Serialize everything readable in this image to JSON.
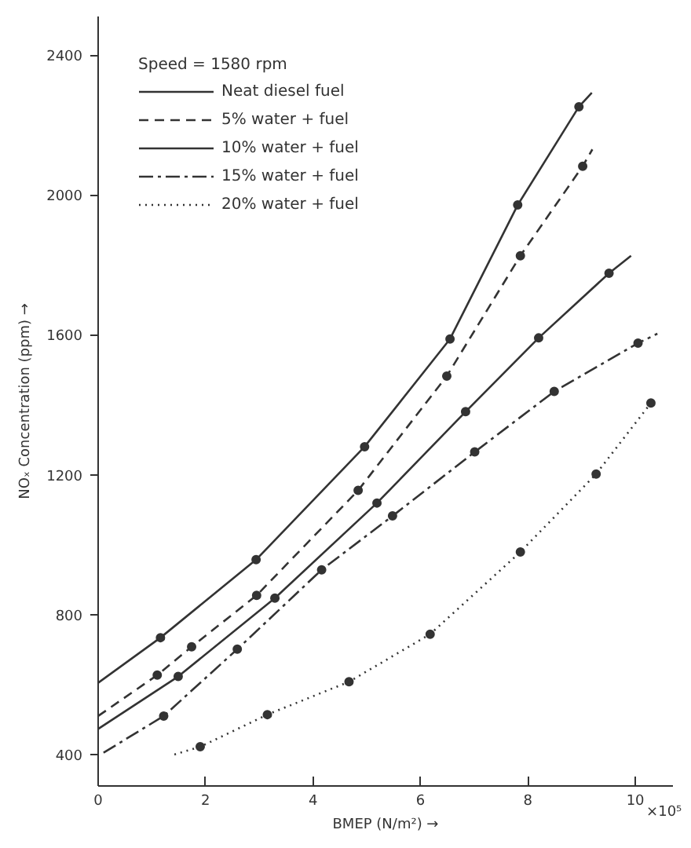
{
  "chart_data": {
    "type": "line",
    "xlabel": "BMEP (N/m²) →",
    "ylabel": "NOₓ Concentration (ppm) →",
    "legend_title": "Speed = 1580 rpm",
    "annotations": [
      "×10⁵"
    ],
    "xlim": [
      0,
      10.7
    ],
    "ylim": [
      310,
      2510
    ],
    "xticks": [
      0,
      2,
      4,
      6,
      8,
      10
    ],
    "yticks": [
      400,
      800,
      1200,
      1600,
      2000,
      2400
    ],
    "grid": false,
    "legend": "top left",
    "series": [
      {
        "name": "Neat diesel fuel",
        "color": "#333333",
        "line_style": "solid",
        "marker": "none",
        "x": [
          0,
          1.16,
          2.94,
          4.96,
          6.55,
          7.81,
          8.95,
          9.19
        ],
        "values": [
          605,
          734,
          957,
          1280,
          1588,
          1971,
          2252,
          2292
        ]
      },
      {
        "name": "5% water + fuel",
        "color": "#333333",
        "line_style": "dashed",
        "marker": "none",
        "x": [
          0,
          1.1,
          1.74,
          2.95,
          4.84,
          6.49,
          7.86,
          9.02,
          9.2
        ],
        "values": [
          510,
          627,
          708,
          855,
          1155,
          1482,
          1826,
          2082,
          2130
        ]
      },
      {
        "name": "10% water + fuel",
        "color": "#333333",
        "line_style": "solid",
        "marker": "none",
        "x": [
          0,
          1.49,
          3.29,
          5.19,
          6.84,
          8.2,
          9.51,
          9.92
        ],
        "values": [
          473,
          623,
          847,
          1119,
          1380,
          1591,
          1776,
          1826
        ]
      },
      {
        "name": "15% water + fuel",
        "color": "#333333",
        "line_style": "dashdot",
        "marker": "none",
        "x": [
          0.1,
          1.22,
          2.59,
          4.16,
          5.48,
          7.01,
          8.49,
          10.05,
          10.41
        ],
        "values": [
          405,
          510,
          701,
          928,
          1082,
          1265,
          1438,
          1576,
          1603
        ]
      },
      {
        "name": "20% water + fuel",
        "color": "#333333",
        "line_style": "dotted",
        "marker": "none",
        "x": [
          1.42,
          1.9,
          3.15,
          4.67,
          6.18,
          7.86,
          9.27,
          10.29
        ],
        "values": [
          400,
          422,
          514,
          608,
          744,
          979,
          1202,
          1405
        ]
      },
      {
        "type": "scatter",
        "color": "#333333",
        "marker": "circle",
        "x": [
          1.16,
          2.94,
          4.96,
          6.55,
          7.81,
          8.95
        ],
        "values": [
          734,
          957,
          1280,
          1588,
          1971,
          2252
        ]
      },
      {
        "type": "scatter",
        "color": "#333333",
        "marker": "circle",
        "x": [
          1.1,
          1.74,
          2.95,
          4.84,
          6.49,
          7.86,
          9.02
        ],
        "values": [
          627,
          708,
          855,
          1155,
          1482,
          1826,
          2082
        ]
      },
      {
        "type": "scatter",
        "color": "#333333",
        "marker": "circle",
        "x": [
          1.49,
          3.29,
          5.19,
          6.84,
          8.2,
          9.51
        ],
        "values": [
          623,
          847,
          1119,
          1380,
          1591,
          1776
        ]
      },
      {
        "type": "scatter",
        "color": "#333333",
        "marker": "circle",
        "x": [
          1.22,
          2.59,
          4.16,
          5.48,
          7.01,
          8.49,
          10.05
        ],
        "values": [
          510,
          701,
          928,
          1082,
          1265,
          1438,
          1576
        ]
      },
      {
        "type": "scatter",
        "color": "#333333",
        "marker": "circle",
        "x": [
          1.9,
          3.15,
          4.67,
          6.18,
          7.86,
          9.27,
          10.29
        ],
        "values": [
          422,
          514,
          608,
          744,
          979,
          1202,
          1405
        ]
      }
    ]
  }
}
